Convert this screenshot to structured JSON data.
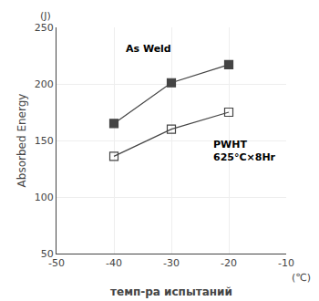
{
  "chart_data": {
    "type": "line",
    "x": [
      -40,
      -30,
      -20
    ],
    "series": [
      {
        "values": [
          165,
          201,
          217
        ],
        "color": "#444444",
        "marker": "square"
      },
      {
        "values": [
          136,
          160,
          175
        ],
        "color": "#444444",
        "marker": "square-open"
      }
    ],
    "x_label": "темп-ра испытаний",
    "y_label": "Absorbed Energy",
    "annotations": [
      {
        "text": "As Weld",
        "x": -34,
        "y": 224
      },
      {
        "text": "PWHT\n625°C×8Hr",
        "x": -23,
        "y": 153
      },
      {
        "text": "(J)",
        "axis": "y"
      },
      {
        "text": "(℃)",
        "axis": "x"
      }
    ],
    "xlim": [
      -50,
      -10
    ],
    "ylim": [
      50,
      250
    ],
    "xticks": [
      -50,
      -40,
      -30,
      -20,
      -10
    ],
    "yticks": [
      50,
      100,
      150,
      200,
      250
    ],
    "grid": true
  }
}
